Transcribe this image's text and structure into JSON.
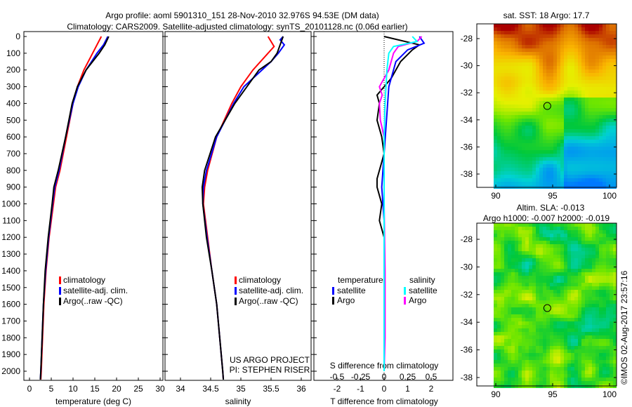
{
  "title_line1": "Argo profile: aoml 5901310_151 28-Nov-2010 32.976S 94.53E (DM data)",
  "title_line2": "Climatology: CARS2009. Satellite-adjusted climatology: synTS_20101128.nc (0.06d earlier)",
  "project": "US ARGO PROJECT",
  "pi": "PI: STEPHEN RISER",
  "copyright": "©IMOS 02-Aug-2017 23:57:16",
  "colors": {
    "climatology": "#ff0000",
    "satellite": "#0000ff",
    "argo": "#000000",
    "sal_satellite": "#00ffff",
    "sal_argo": "#ff00ff"
  },
  "chart_data": [
    {
      "type": "line",
      "name": "temperature",
      "xlabel": "temperature (deg C)",
      "xlim": [
        -1.5,
        30.5
      ],
      "ylim": [
        2050,
        0
      ],
      "xticks": [
        "0",
        "5",
        "10",
        "15",
        "20",
        "25",
        "30"
      ],
      "xtick_values": [
        0,
        5,
        10,
        15,
        20,
        25,
        30
      ],
      "yticks": [
        "0",
        "100",
        "200",
        "300",
        "400",
        "500",
        "600",
        "700",
        "800",
        "900",
        "1000",
        "1100",
        "1200",
        "1300",
        "1400",
        "1500",
        "1600",
        "1700",
        "1800",
        "1900",
        "2000"
      ],
      "legend": [
        "climatology",
        "satellite-adj. clim.",
        "Argo(..raw -QC)"
      ],
      "series": [
        {
          "name": "climatology",
          "depth": [
            0,
            50,
            100,
            200,
            300,
            400,
            600,
            800,
            900,
            1000,
            1200,
            1400,
            1600,
            1800,
            2000,
            2050
          ],
          "values": [
            16.5,
            15.5,
            14.5,
            12.5,
            11,
            10,
            8.5,
            7,
            6,
            5.5,
            4.5,
            3.8,
            3.3,
            3,
            2.7,
            2.6
          ]
        },
        {
          "name": "satellite-adj. clim.",
          "depth": [
            0,
            50,
            100,
            200,
            300,
            400,
            600,
            800,
            900,
            1000,
            1200,
            1400,
            1600,
            1800,
            2000,
            2050
          ],
          "values": [
            18,
            17,
            15.5,
            13,
            11.2,
            10,
            8.3,
            6.8,
            5.8,
            5.3,
            4.4,
            3.7,
            3.2,
            2.9,
            2.6,
            2.5
          ]
        },
        {
          "name": "Argo(..raw -QC)",
          "depth": [
            0,
            50,
            100,
            200,
            300,
            400,
            600,
            800,
            900,
            1000,
            1200,
            1400,
            1600,
            1800,
            2000,
            2050
          ],
          "values": [
            18.2,
            17.3,
            16,
            13,
            11,
            9.8,
            8.3,
            6.6,
            5.6,
            5.2,
            4.3,
            3.6,
            3.2,
            2.9,
            2.6,
            2.5
          ]
        }
      ]
    },
    {
      "type": "line",
      "name": "salinity",
      "xlabel": "salinity",
      "xlim": [
        33.75,
        36.1
      ],
      "ylim": [
        2050,
        0
      ],
      "xticks": [
        "34",
        "34.5",
        "35",
        "35.5",
        "36"
      ],
      "xtick_values": [
        34,
        34.5,
        35,
        35.5,
        36
      ],
      "legend": [
        "climatology",
        "satellite-adj. clim.",
        "Argo(..raw -QC)"
      ],
      "series": [
        {
          "name": "climatology",
          "depth": [
            0,
            30,
            60,
            100,
            200,
            300,
            400,
            600,
            800,
            900,
            1000,
            1200,
            1400,
            1600,
            1800,
            2000,
            2050
          ],
          "values": [
            35.45,
            35.5,
            35.55,
            35.45,
            35.2,
            35,
            34.85,
            34.6,
            34.45,
            34.4,
            34.38,
            34.45,
            34.52,
            34.6,
            34.65,
            34.7,
            34.71
          ]
        },
        {
          "name": "satellite-adj. clim.",
          "depth": [
            0,
            20,
            50,
            100,
            150,
            250,
            300,
            400,
            600,
            800,
            900,
            1000,
            1200,
            1400,
            1600,
            1800,
            2000,
            2050
          ],
          "values": [
            35.7,
            35.65,
            35.72,
            35.62,
            35.5,
            35.2,
            35.05,
            34.88,
            34.6,
            34.43,
            34.38,
            34.37,
            34.44,
            34.52,
            34.6,
            34.65,
            34.7,
            34.71
          ]
        },
        {
          "name": "Argo(..raw -QC)",
          "depth": [
            0,
            50,
            100,
            150,
            200,
            300,
            400,
            600,
            800,
            900,
            1000,
            1200,
            1400,
            1600,
            1800,
            2000,
            2050
          ],
          "values": [
            35.7,
            35.65,
            35.6,
            35.5,
            35.3,
            35.1,
            34.9,
            34.58,
            34.4,
            34.36,
            34.37,
            34.43,
            34.52,
            34.6,
            34.65,
            34.7,
            34.71
          ]
        }
      ]
    },
    {
      "type": "line",
      "name": "difference",
      "xlabel": "T difference from climatology",
      "x2label": "S difference from climatology",
      "xlim": [
        -3,
        3
      ],
      "ylim": [
        2050,
        0
      ],
      "xticks": [
        "-2",
        "-1",
        "0",
        "1",
        "2"
      ],
      "xtick_values": [
        -2,
        -1,
        0,
        1,
        2
      ],
      "x2ticks": [
        "-0.5",
        "-0.25",
        "0",
        "0.25",
        "0.5"
      ],
      "x2tick_values": [
        -0.5,
        -0.25,
        0,
        0.25,
        0.5
      ],
      "legend_t_title": "temperature",
      "legend_s_title": "salinity",
      "legend": [
        "satellite",
        "Argo",
        "satellite",
        "Argo"
      ],
      "series": [
        {
          "name": "T satellite",
          "depth": [
            0,
            40,
            80,
            150,
            300,
            500,
            700,
            900,
            1100,
            1400,
            1700,
            2000
          ],
          "values": [
            1.5,
            1.7,
            1,
            0.5,
            0.2,
            0.1,
            0,
            -0.1,
            0,
            0,
            0,
            0
          ]
        },
        {
          "name": "T Argo",
          "depth": [
            0,
            50,
            80,
            150,
            250,
            350,
            400,
            500,
            600,
            700,
            850,
            900,
            1000,
            1100,
            1200,
            1500,
            1800,
            2000
          ],
          "values": [
            0,
            1.5,
            1.2,
            0.7,
            0.3,
            -0.3,
            -0.2,
            -0.3,
            -0.1,
            0,
            -0.3,
            -0.3,
            -0.1,
            -0.2,
            0,
            0,
            0,
            0
          ]
        },
        {
          "name": "S satellite",
          "depth": [
            0,
            30,
            60,
            100,
            200,
            300,
            400,
            600,
            800,
            1000,
            1400,
            1800,
            2000
          ],
          "values": [
            0.3,
            0.35,
            0.1,
            0.05,
            0.03,
            0.02,
            0.01,
            0,
            0,
            0,
            0,
            0,
            0
          ]
        },
        {
          "name": "S Argo",
          "depth": [
            0,
            30,
            60,
            100,
            200,
            300,
            350,
            400,
            500,
            600,
            800,
            1000,
            1400,
            1800,
            2000
          ],
          "values": [
            0.4,
            0.35,
            0.15,
            0.1,
            0.05,
            -0.05,
            -0.02,
            -0.05,
            -0.04,
            0,
            0,
            0,
            0.01,
            0.01,
            0
          ]
        }
      ]
    },
    {
      "type": "heatmap",
      "name": "sst-map",
      "title": "sat. SST: 18 Argo: 17.7",
      "xticks": [
        "90",
        "95",
        "100"
      ],
      "yticks": [
        "-28",
        "-30",
        "-32",
        "-34",
        "-36",
        "-38"
      ],
      "marker": {
        "lon": 94.53,
        "lat": -32.976
      }
    },
    {
      "type": "heatmap",
      "name": "sla-map",
      "title_line1": "Altim. SLA: -0.013",
      "title_line2": "Argo h1000: -0.007 h2000: -0.019",
      "xticks": [
        "90",
        "95",
        "100"
      ],
      "yticks": [
        "-28",
        "-30",
        "-32",
        "-34",
        "-36",
        "-38"
      ],
      "marker": {
        "lon": 94.53,
        "lat": -32.976
      }
    }
  ]
}
